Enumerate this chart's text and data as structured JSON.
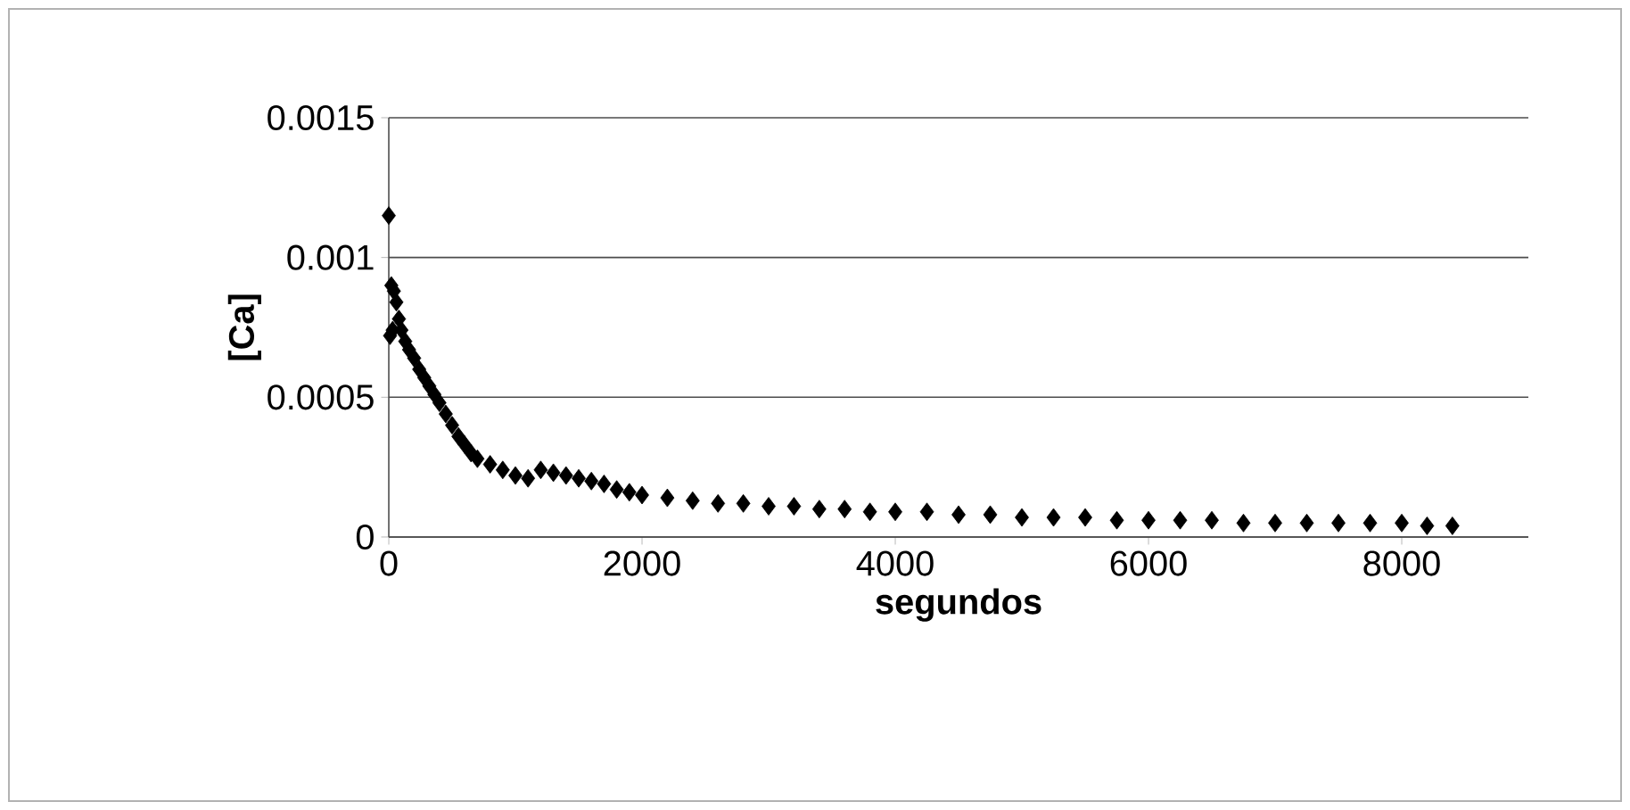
{
  "chart_data": {
    "type": "scatter",
    "xlabel": "segundos",
    "ylabel": "[Ca]",
    "color": "#000000",
    "marker": "diamond",
    "grid": "y",
    "xlim": [
      0,
      9000
    ],
    "ylim": [
      0,
      0.0015
    ],
    "xticks": [
      0,
      2000,
      4000,
      6000,
      8000
    ],
    "yticks": [
      0,
      0.0005,
      0.001,
      0.0015
    ],
    "x": [
      0,
      20,
      40,
      60,
      10,
      30,
      80,
      100,
      130,
      160,
      200,
      240,
      280,
      320,
      360,
      400,
      450,
      500,
      550,
      600,
      650,
      700,
      800,
      900,
      1000,
      1100,
      1200,
      1300,
      1400,
      1500,
      1600,
      1700,
      1800,
      1900,
      2000,
      2200,
      2400,
      2600,
      2800,
      3000,
      3200,
      3400,
      3600,
      3800,
      4000,
      4250,
      4500,
      4750,
      5000,
      5250,
      5500,
      5750,
      6000,
      6250,
      6500,
      6750,
      7000,
      7250,
      7500,
      7750,
      8000,
      8200,
      8400
    ],
    "values": [
      0.00115,
      0.0009,
      0.00088,
      0.00084,
      0.00072,
      0.00074,
      0.00078,
      0.00074,
      0.0007,
      0.00067,
      0.00064,
      0.0006,
      0.00057,
      0.00054,
      0.00051,
      0.00048,
      0.00044,
      0.0004,
      0.00036,
      0.00033,
      0.0003,
      0.00028,
      0.00026,
      0.00024,
      0.00022,
      0.00021,
      0.00024,
      0.00023,
      0.00022,
      0.00021,
      0.0002,
      0.00019,
      0.00017,
      0.00016,
      0.00015,
      0.00014,
      0.00013,
      0.00012,
      0.00012,
      0.00011,
      0.00011,
      0.0001,
      0.0001,
      9e-05,
      9e-05,
      9e-05,
      8e-05,
      8e-05,
      7e-05,
      7e-05,
      7e-05,
      6e-05,
      6e-05,
      6e-05,
      6e-05,
      5e-05,
      5e-05,
      5e-05,
      5e-05,
      5e-05,
      5e-05,
      4e-05,
      4e-05
    ]
  }
}
